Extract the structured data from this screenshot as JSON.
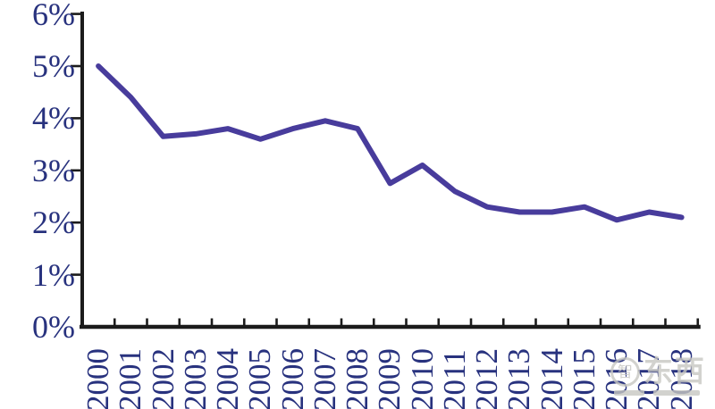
{
  "chart_data": {
    "type": "line",
    "title": "",
    "categories": [
      "2000",
      "2001",
      "2002",
      "2003",
      "2004",
      "2005",
      "2006",
      "2007",
      "2008",
      "2009",
      "2010",
      "2011",
      "2012",
      "2013",
      "2014",
      "2015",
      "2016",
      "2017",
      "2018"
    ],
    "values": [
      5.0,
      4.4,
      3.65,
      3.7,
      3.8,
      3.6,
      3.8,
      3.95,
      3.8,
      2.75,
      3.1,
      2.6,
      2.3,
      2.2,
      2.2,
      2.3,
      2.05,
      2.2,
      2.1
    ],
    "unit": "%",
    "xlabel": "",
    "ylabel": "",
    "y_ticks": [
      {
        "label": "6%",
        "value": 6
      },
      {
        "label": "5%",
        "value": 5
      },
      {
        "label": "4%",
        "value": 4
      },
      {
        "label": "3%",
        "value": 3
      },
      {
        "label": "2%",
        "value": 2
      },
      {
        "label": "1%",
        "value": 1
      },
      {
        "label": "0%",
        "value": 0
      }
    ],
    "ylim": [
      0,
      6
    ],
    "grid": false,
    "legend_position": "none",
    "line_color": "#483C9C",
    "axis_color": "#1b1b1b",
    "label_color": "#28327e"
  },
  "watermark": {
    "logo_char": "智",
    "text": "东西",
    "color": "#c8c8c2"
  }
}
